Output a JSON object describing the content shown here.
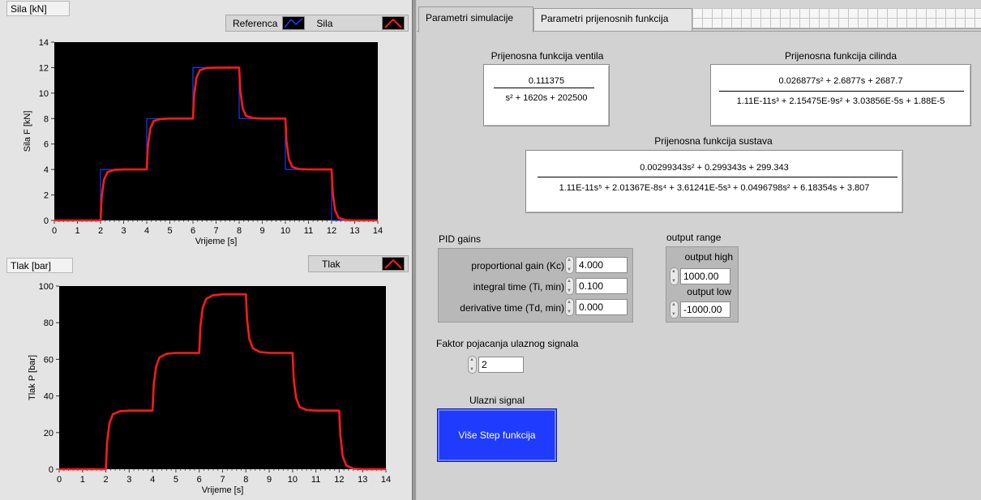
{
  "chart1": {
    "title": "Sila [kN]",
    "legend": [
      {
        "label": "Referenca",
        "color": "#1a3cff"
      },
      {
        "label": "Sila",
        "color": "#ff1a1a"
      }
    ],
    "xlabel": "Vrijeme [s]",
    "ylabel": "Sila F [kN]",
    "xticks": [
      "0",
      "1",
      "2",
      "3",
      "4",
      "5",
      "6",
      "7",
      "8",
      "9",
      "10",
      "11",
      "12",
      "13",
      "14"
    ],
    "yticks": [
      "0",
      "2",
      "4",
      "6",
      "8",
      "10",
      "12",
      "14"
    ]
  },
  "chart2": {
    "title": "Tlak [bar]",
    "legend": [
      {
        "label": "Tlak",
        "color": "#ff1a1a"
      }
    ],
    "xlabel": "Vrijeme [s]",
    "ylabel": "Tlak P [bar]",
    "xticks": [
      "0",
      "1",
      "2",
      "3",
      "4",
      "5",
      "6",
      "7",
      "8",
      "9",
      "10",
      "11",
      "12",
      "13",
      "14"
    ],
    "yticks": [
      "0",
      "20",
      "40",
      "60",
      "80",
      "100"
    ]
  },
  "chart_data": [
    {
      "type": "line",
      "title": "Sila [kN]",
      "xlabel": "Vrijeme [s]",
      "ylabel": "Sila F [kN]",
      "xlim": [
        0,
        14
      ],
      "ylim": [
        0,
        14
      ],
      "series": [
        {
          "name": "Referenca",
          "color": "#1a3cff",
          "x": [
            0,
            2,
            2,
            4,
            4,
            6,
            6,
            8,
            8,
            10,
            10,
            12,
            12,
            14
          ],
          "y": [
            0,
            0,
            4,
            4,
            8,
            8,
            12,
            12,
            8,
            8,
            4,
            4,
            0,
            0
          ]
        },
        {
          "name": "Sila",
          "color": "#ff1a1a",
          "x": [
            0,
            2.0,
            2.05,
            2.15,
            2.3,
            2.6,
            3.0,
            4.0,
            4.05,
            4.15,
            4.3,
            4.6,
            5.0,
            6.0,
            6.05,
            6.15,
            6.3,
            6.6,
            7.0,
            8.0,
            8.05,
            8.15,
            8.3,
            8.6,
            9.0,
            10.0,
            10.05,
            10.15,
            10.3,
            10.6,
            11.0,
            12.0,
            12.05,
            12.15,
            12.3,
            12.6,
            13.0,
            14.0
          ],
          "y": [
            0,
            0,
            1.8,
            3.2,
            3.8,
            3.97,
            4.0,
            4.0,
            5.8,
            7.2,
            7.8,
            7.97,
            8.0,
            8.0,
            9.8,
            11.2,
            11.8,
            11.97,
            12.0,
            12.0,
            10.2,
            8.8,
            8.2,
            8.03,
            8.0,
            8.0,
            6.2,
            4.8,
            4.2,
            4.03,
            4.0,
            4.0,
            2.2,
            0.8,
            0.2,
            0.03,
            0.0,
            0.0
          ]
        }
      ]
    },
    {
      "type": "line",
      "title": "Tlak [bar]",
      "xlabel": "Vrijeme [s]",
      "ylabel": "Tlak P [bar]",
      "xlim": [
        0,
        14
      ],
      "ylim": [
        0,
        100
      ],
      "series": [
        {
          "name": "Tlak",
          "color": "#ff1a1a",
          "x": [
            0,
            2.0,
            2.05,
            2.15,
            2.3,
            2.6,
            3.0,
            4.0,
            4.05,
            4.15,
            4.3,
            4.6,
            5.0,
            6.0,
            6.05,
            6.15,
            6.3,
            6.6,
            7.0,
            8.0,
            8.05,
            8.15,
            8.3,
            8.6,
            9.0,
            10.0,
            10.05,
            10.15,
            10.3,
            10.6,
            11.0,
            12.0,
            12.05,
            12.15,
            12.3,
            12.6,
            13.0,
            14.0
          ],
          "y": [
            0,
            0,
            14,
            25,
            30,
            31.7,
            32,
            32,
            46,
            56,
            61,
            63,
            63.5,
            63.5,
            78,
            88,
            93,
            95,
            95.5,
            95.5,
            82,
            71,
            66,
            64,
            63.5,
            63.5,
            49,
            39,
            34,
            32.3,
            32,
            32,
            18,
            7,
            2,
            0.3,
            0,
            0
          ]
        }
      ]
    }
  ],
  "tabs": [
    {
      "label": "Parametri simulacije"
    },
    {
      "label": "Parametri prijenosnih funkcija"
    }
  ],
  "tf_valve": {
    "label": "Prijenosna funkcija ventila",
    "num": "0.111375",
    "den": "s² + 1620s + 202500"
  },
  "tf_cyl": {
    "label": "Prijenosna funkcija cilinda",
    "num": "0.026877s² + 2.6877s + 2687.7",
    "den": "1.11E-11s³ + 2.15475E-9s² + 3.03856E-5s + 1.88E-5"
  },
  "tf_sys": {
    "label": "Prijenosna funkcija sustava",
    "num": "0.00299343s² + 0.299343s + 299.343",
    "den": "1.11E-11s⁵ + 2.01367E-8s⁴ + 3.61241E-5s³ + 0.0496798s² + 6.18354s + 3.807"
  },
  "pid": {
    "title": "PID gains",
    "kc_label": "proportional gain (Kc)",
    "kc": "4.000",
    "ti_label": "integral time (Ti, min)",
    "ti": "0.100",
    "td_label": "derivative time (Td, min)",
    "td": "0.000"
  },
  "output_range": {
    "title": "output range",
    "high_label": "output high",
    "high": "1000.00",
    "low_label": "output low",
    "low": "-1000.00"
  },
  "gain": {
    "label": "Faktor pojacanja ulaznog signala",
    "value": "2"
  },
  "input_signal": {
    "label": "Ulazni signal",
    "button": "Više Step funkcija"
  }
}
